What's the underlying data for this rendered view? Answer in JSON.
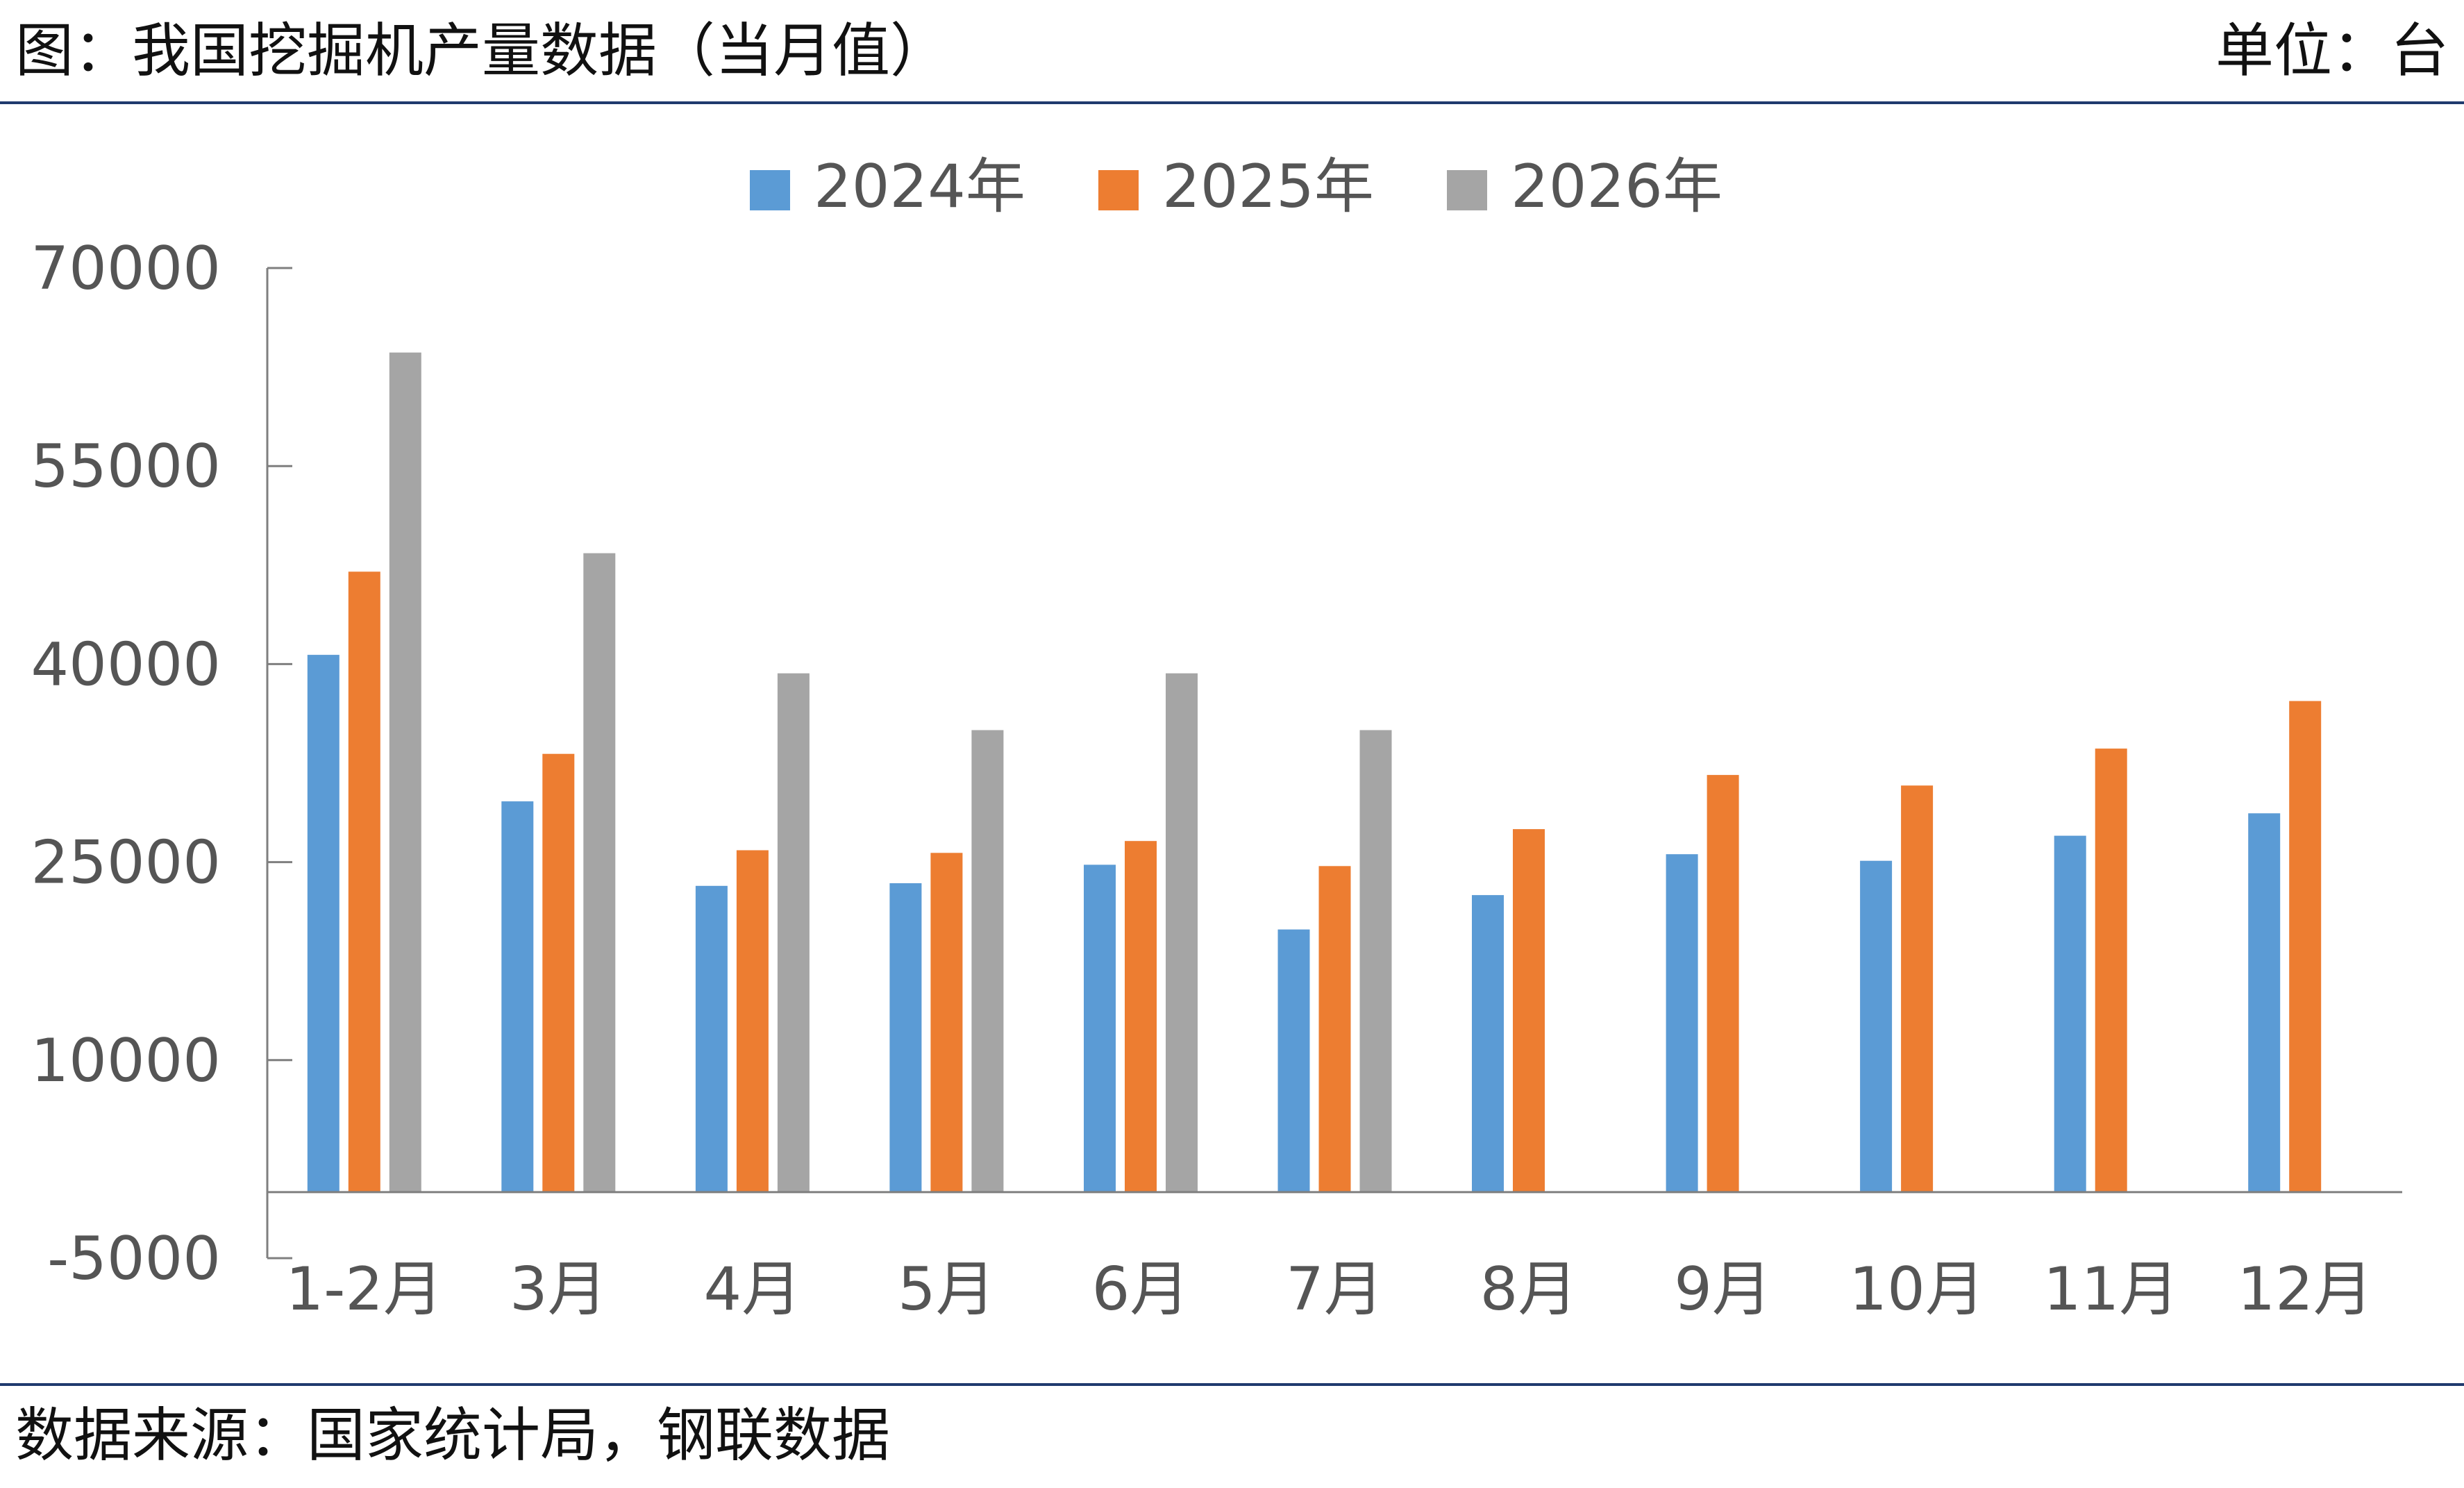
{
  "header": {
    "title": "图：我国挖掘机产量数据（当月值）",
    "unit": "单位：台"
  },
  "footer": {
    "source": "数据来源：国家统计局，钢联数据"
  },
  "colors": {
    "rule": "#1f3a6e",
    "axis": "#7f7f7f",
    "text": "#555555"
  },
  "chart_data": {
    "type": "bar",
    "categories": [
      "1-2月",
      "3月",
      "4月",
      "5月",
      "6月",
      "7月",
      "8月",
      "9月",
      "10月",
      "11月",
      "12月"
    ],
    "series": [
      {
        "name": "2024年",
        "color": "#5b9bd5",
        "values": [
          40700,
          29600,
          23200,
          23400,
          24800,
          19900,
          22500,
          25600,
          25100,
          27000,
          28700
        ]
      },
      {
        "name": "2025年",
        "color": "#ed7d31",
        "values": [
          47000,
          33200,
          25900,
          25700,
          26600,
          24700,
          27500,
          31600,
          30800,
          33600,
          37200
        ]
      },
      {
        "name": "2026年",
        "color": "#a5a5a5",
        "values": [
          63600,
          48400,
          39300,
          35000,
          39300,
          35000,
          null,
          null,
          null,
          null,
          null
        ]
      }
    ],
    "ylim": [
      -5000,
      70000
    ],
    "yticks": [
      -5000,
      10000,
      25000,
      40000,
      55000,
      70000
    ],
    "grid": false,
    "legend": "top-center"
  }
}
